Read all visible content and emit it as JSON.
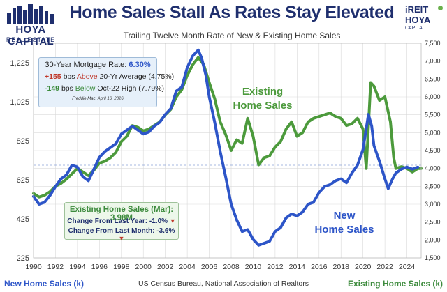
{
  "header": {
    "title": "Home Sales Stall As Rates Stay Elevated",
    "subtitle": "Trailing Twelve Month Rate of New & Existing Home Sales"
  },
  "logos": {
    "left_brand": "HOYA CAPITAL",
    "left_sub": "REAL ESTATE",
    "right_line1": "iREIT",
    "right_line2": "HOYA",
    "right_line3": "CAPITAL"
  },
  "mortgage_box": {
    "line1_prefix": "30-Year Mortgage Rate:",
    "line1_value": "6.30%",
    "line2_value": "+155",
    "line2_unit": "bps",
    "line2_word": "Above",
    "line2_rest": "20-Yr Average (4.75%)",
    "line3_value": "-149",
    "line3_unit": "bps",
    "line3_word": "Below",
    "line3_rest": "Oct-22 High (7.79%)",
    "source": "Freddie Mac, April 16, 2026"
  },
  "existing_box": {
    "headline": "Existing Home Sales (Mar): 3.98M",
    "yoy_label": "Change From Last Year: -1.0%",
    "mom_label": "Change From Last Month: -3.6%",
    "arrow": "▼"
  },
  "annotations": {
    "existing_line1": "Existing",
    "existing_line2": "Home Sales",
    "new_line1": "New",
    "new_line2": "Home Sales"
  },
  "footer": {
    "left": "New Home Sales (k)",
    "center": "US Census Bureau, National Association of Realtors",
    "right": "Existing Home Sales (k)"
  },
  "colors": {
    "new_sales": "#2d55c8",
    "existing_sales": "#4c9a3c",
    "title": "#1f2f6e",
    "grid": "#d9d9d9",
    "reference": "#8aa3d8"
  },
  "chart_data": {
    "type": "line",
    "title": "Home Sales Stall As Rates Stay Elevated",
    "subtitle": "Trailing Twelve Month Rate of New & Existing Home Sales",
    "xlabel": "",
    "x_ticks": [
      "1990",
      "1992",
      "1994",
      "1996",
      "1998",
      "2000",
      "2002",
      "2004",
      "2006",
      "2008",
      "2010",
      "2012",
      "2014",
      "2016",
      "2018",
      "2020",
      "2022",
      "2024"
    ],
    "xlim": [
      1990,
      2025.3
    ],
    "y_left": {
      "label": "New Home Sales (k)",
      "ylim": [
        225,
        1325
      ],
      "ticks": [
        "225",
        "425",
        "625",
        "825",
        "1,025",
        "1,225"
      ],
      "tick_values": [
        225,
        425,
        625,
        825,
        1025,
        1225
      ]
    },
    "y_right": {
      "label": "Existing Home Sales (k)",
      "ylim": [
        1500,
        7500
      ],
      "ticks": [
        "1,500",
        "2,000",
        "2,500",
        "3,000",
        "3,500",
        "4,000",
        "4,500",
        "5,000",
        "5,500",
        "6,000",
        "6,500",
        "7,000",
        "7,500"
      ],
      "tick_values": [
        1500,
        2000,
        2500,
        3000,
        3500,
        4000,
        4500,
        5000,
        5500,
        6000,
        6500,
        7000,
        7500
      ]
    },
    "reference_lines_left_axis": [
      680,
      700
    ],
    "series": [
      {
        "name": "New Home Sales",
        "axis": "left",
        "points": [
          [
            1990,
            540
          ],
          [
            1990.5,
            500
          ],
          [
            1991,
            510
          ],
          [
            1991.5,
            545
          ],
          [
            1992,
            590
          ],
          [
            1992.5,
            630
          ],
          [
            1993,
            650
          ],
          [
            1993.5,
            700
          ],
          [
            1994,
            690
          ],
          [
            1994.5,
            640
          ],
          [
            1995,
            620
          ],
          [
            1995.5,
            680
          ],
          [
            1996,
            740
          ],
          [
            1996.5,
            770
          ],
          [
            1997,
            790
          ],
          [
            1997.5,
            810
          ],
          [
            1998,
            860
          ],
          [
            1998.5,
            880
          ],
          [
            1999,
            900
          ],
          [
            1999.5,
            880
          ],
          [
            2000,
            860
          ],
          [
            2000.5,
            870
          ],
          [
            2001,
            900
          ],
          [
            2001.5,
            920
          ],
          [
            2002,
            960
          ],
          [
            2002.5,
            990
          ],
          [
            2003,
            1080
          ],
          [
            2003.5,
            1100
          ],
          [
            2004,
            1200
          ],
          [
            2004.5,
            1260
          ],
          [
            2005,
            1290
          ],
          [
            2005.3,
            1250
          ],
          [
            2005.7,
            1160
          ],
          [
            2006,
            1050
          ],
          [
            2006.5,
            920
          ],
          [
            2007,
            770
          ],
          [
            2007.5,
            640
          ],
          [
            2008,
            500
          ],
          [
            2008.5,
            420
          ],
          [
            2009,
            360
          ],
          [
            2009.5,
            370
          ],
          [
            2010,
            320
          ],
          [
            2010.5,
            290
          ],
          [
            2011,
            300
          ],
          [
            2011.5,
            310
          ],
          [
            2012,
            360
          ],
          [
            2012.5,
            380
          ],
          [
            2013,
            430
          ],
          [
            2013.5,
            450
          ],
          [
            2014,
            440
          ],
          [
            2014.5,
            460
          ],
          [
            2015,
            500
          ],
          [
            2015.5,
            510
          ],
          [
            2016,
            560
          ],
          [
            2016.5,
            590
          ],
          [
            2017,
            600
          ],
          [
            2017.5,
            620
          ],
          [
            2018,
            630
          ],
          [
            2018.5,
            610
          ],
          [
            2019,
            660
          ],
          [
            2019.5,
            700
          ],
          [
            2020,
            780
          ],
          [
            2020.5,
            960
          ],
          [
            2020.8,
            900
          ],
          [
            2021,
            800
          ],
          [
            2021.5,
            720
          ],
          [
            2022,
            630
          ],
          [
            2022.3,
            580
          ],
          [
            2022.7,
            630
          ],
          [
            2023,
            660
          ],
          [
            2023.5,
            680
          ],
          [
            2024,
            690
          ],
          [
            2024.5,
            680
          ],
          [
            2025,
            690
          ]
        ]
      },
      {
        "name": "Existing Home Sales",
        "axis": "right",
        "points": [
          [
            1990,
            3300
          ],
          [
            1990.5,
            3200
          ],
          [
            1991,
            3250
          ],
          [
            1991.5,
            3350
          ],
          [
            1992,
            3500
          ],
          [
            1992.5,
            3580
          ],
          [
            1993,
            3700
          ],
          [
            1993.5,
            3850
          ],
          [
            1994,
            4000
          ],
          [
            1994.5,
            3900
          ],
          [
            1995,
            3800
          ],
          [
            1995.5,
            3950
          ],
          [
            1996,
            4150
          ],
          [
            1996.5,
            4200
          ],
          [
            1997,
            4300
          ],
          [
            1997.5,
            4450
          ],
          [
            1998,
            4750
          ],
          [
            1998.5,
            4900
          ],
          [
            1999,
            5200
          ],
          [
            1999.5,
            5150
          ],
          [
            2000,
            5050
          ],
          [
            2000.5,
            5100
          ],
          [
            2001,
            5200
          ],
          [
            2001.5,
            5300
          ],
          [
            2002,
            5500
          ],
          [
            2002.5,
            5650
          ],
          [
            2003,
            6000
          ],
          [
            2003.5,
            6200
          ],
          [
            2004,
            6600
          ],
          [
            2004.5,
            6900
          ],
          [
            2005,
            7100
          ],
          [
            2005.5,
            6900
          ],
          [
            2006,
            6400
          ],
          [
            2006.5,
            5950
          ],
          [
            2007,
            5300
          ],
          [
            2007.5,
            4950
          ],
          [
            2008,
            4500
          ],
          [
            2008.5,
            4800
          ],
          [
            2009,
            4700
          ],
          [
            2009.5,
            5400
          ],
          [
            2010,
            4900
          ],
          [
            2010.5,
            4100
          ],
          [
            2011,
            4300
          ],
          [
            2011.5,
            4350
          ],
          [
            2012,
            4600
          ],
          [
            2012.5,
            4750
          ],
          [
            2013,
            5100
          ],
          [
            2013.5,
            5300
          ],
          [
            2014,
            4900
          ],
          [
            2014.5,
            5000
          ],
          [
            2015,
            5300
          ],
          [
            2015.5,
            5400
          ],
          [
            2016,
            5450
          ],
          [
            2016.5,
            5500
          ],
          [
            2017,
            5550
          ],
          [
            2017.5,
            5450
          ],
          [
            2018,
            5400
          ],
          [
            2018.5,
            5200
          ],
          [
            2019,
            5250
          ],
          [
            2019.5,
            5400
          ],
          [
            2020,
            5100
          ],
          [
            2020.3,
            4000
          ],
          [
            2020.7,
            6400
          ],
          [
            2021,
            6300
          ],
          [
            2021.5,
            5900
          ],
          [
            2022,
            6000
          ],
          [
            2022.5,
            5300
          ],
          [
            2022.8,
            4300
          ],
          [
            2023,
            4000
          ],
          [
            2023.5,
            4050
          ],
          [
            2024,
            4000
          ],
          [
            2024.5,
            3900
          ],
          [
            2025,
            4000
          ],
          [
            2025.3,
            4000
          ]
        ]
      }
    ]
  }
}
